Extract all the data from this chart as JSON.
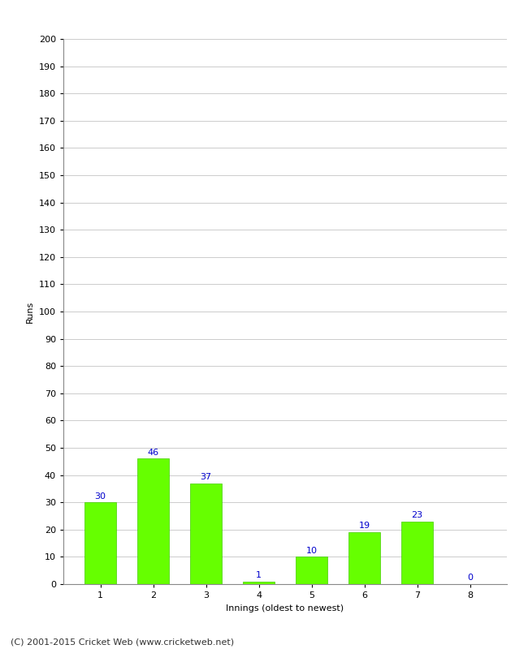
{
  "categories": [
    "1",
    "2",
    "3",
    "4",
    "5",
    "6",
    "7",
    "8"
  ],
  "values": [
    30,
    46,
    37,
    1,
    10,
    19,
    23,
    0
  ],
  "bar_color": "#66ff00",
  "bar_edgecolor": "#44cc00",
  "xlabel": "Innings (oldest to newest)",
  "ylabel": "Runs",
  "ylim": [
    0,
    200
  ],
  "ytick_step": 10,
  "annotation_color": "#0000cc",
  "annotation_fontsize": 8,
  "axis_label_fontsize": 8,
  "tick_fontsize": 8,
  "footer_text": "(C) 2001-2015 Cricket Web (www.cricketweb.net)",
  "footer_fontsize": 8,
  "background_color": "#ffffff",
  "grid_color": "#cccccc"
}
